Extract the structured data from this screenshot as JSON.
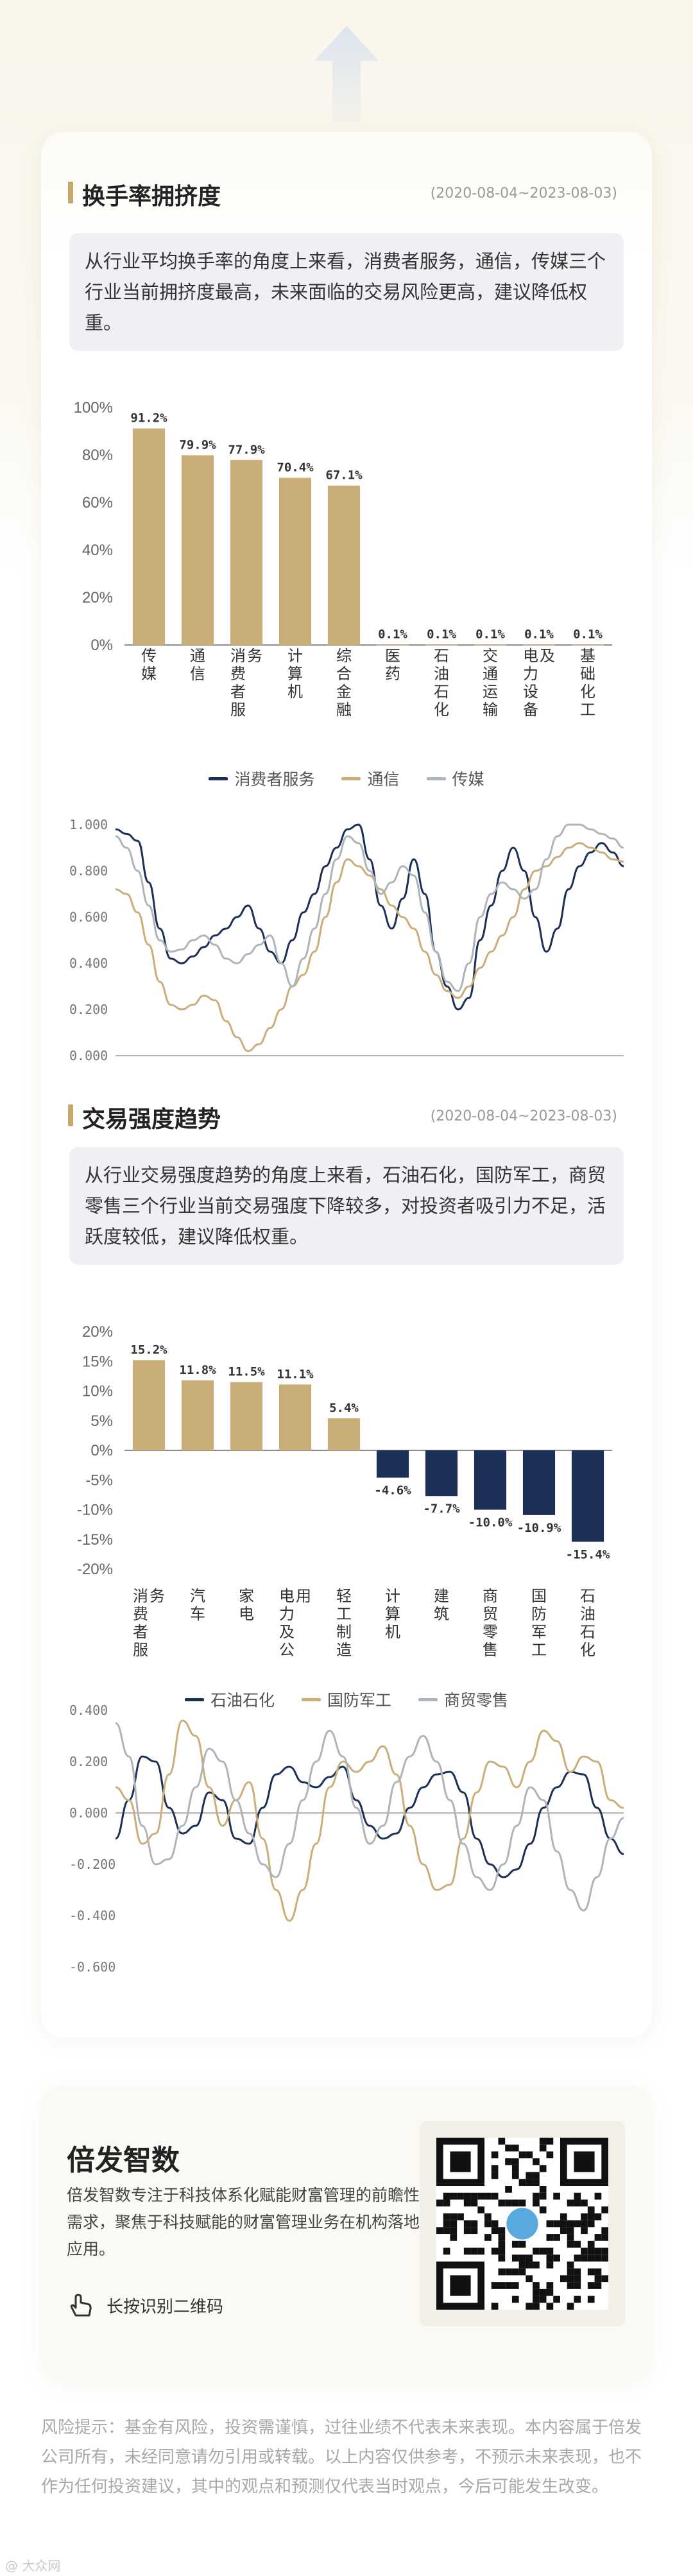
{
  "section1": {
    "title": "换手率拥挤度",
    "date": "(2020-08-04~2023-08-03)",
    "desc": "从行业平均换手率的角度上来看，消费者服务，通信，传媒三个行业当前拥挤度最高，未来面临的交易风险更高，建议降低权重。"
  },
  "section2": {
    "title": "交易强度趋势",
    "date": "(2020-08-04~2023-08-03)",
    "desc": "从行业交易强度趋势的角度上来看，石油石化，国防军工，商贸零售三个行业当前交易强度下降较多，对投资者吸引力不足，活跃度较低，建议降低权重。"
  },
  "promo": {
    "title": "倍发智数",
    "desc": "倍发智数专注于科技体系化赋能财富管理的前瞻性需求，聚焦于科技赋能的财富管理业务在机构落地应用。",
    "scan_label": "长按识别二维码",
    "hand_icon": "hand-pointer-icon",
    "qr_icon": "qr-code-icon"
  },
  "risk": "风险提示：基金有风险，投资需谨慎，过往业绩不代表未来表现。本内容属于倍发公司所有，未经同意请勿引用或转载。以上内容仅供参考，不预示未来表现，也不作为任何投资建议，其中的观点和预测仅代表当时观点，今后可能发生改变。",
  "watermark": "@ 大众网",
  "colors": {
    "gold": "#c9ae79",
    "navy": "#1b2f57",
    "grey": "#aeb4bc",
    "accent": "#c7a86b"
  },
  "chart_data": [
    {
      "type": "bar",
      "categories": [
        "传媒",
        "通信",
        "消费者服务",
        "计算机",
        "综合金融",
        "医药",
        "石油石化",
        "交通运输",
        "电力设备及",
        "基础化工"
      ],
      "values": [
        91.2,
        79.9,
        77.9,
        70.4,
        67.1,
        0.1,
        0.1,
        0.1,
        0.1,
        0.1
      ],
      "value_labels": [
        "91.2%",
        "79.9%",
        "77.9%",
        "70.4%",
        "67.1%",
        "0.1%",
        "0.1%",
        "0.1%",
        "0.1%",
        "0.1%"
      ],
      "yticks": [
        "0%",
        "20%",
        "40%",
        "60%",
        "80%",
        "100%"
      ],
      "ylim": [
        0,
        100
      ]
    },
    {
      "type": "line",
      "series": [
        {
          "name": "消费者服务",
          "values": [
            0.98,
            0.96,
            0.93,
            0.75,
            0.55,
            0.42,
            0.4,
            0.43,
            0.47,
            0.52,
            0.55,
            0.6,
            0.65,
            0.55,
            0.45,
            0.4,
            0.5,
            0.62,
            0.7,
            0.82,
            0.9,
            0.98,
            1.0,
            0.85,
            0.65,
            0.55,
            0.68,
            0.85,
            0.7,
            0.45,
            0.3,
            0.2,
            0.25,
            0.5,
            0.65,
            0.8,
            0.9,
            0.8,
            0.6,
            0.45,
            0.55,
            0.72,
            0.82,
            0.88,
            0.92,
            0.88,
            0.82
          ]
        },
        {
          "name": "通信",
          "values": [
            0.72,
            0.7,
            0.62,
            0.48,
            0.32,
            0.22,
            0.2,
            0.22,
            0.26,
            0.24,
            0.15,
            0.08,
            0.02,
            0.05,
            0.12,
            0.2,
            0.3,
            0.35,
            0.45,
            0.6,
            0.75,
            0.85,
            0.82,
            0.78,
            0.72,
            0.65,
            0.6,
            0.55,
            0.45,
            0.35,
            0.28,
            0.25,
            0.3,
            0.38,
            0.45,
            0.52,
            0.6,
            0.72,
            0.8,
            0.82,
            0.86,
            0.9,
            0.92,
            0.9,
            0.88,
            0.85,
            0.84
          ]
        },
        {
          "name": "传媒",
          "values": [
            0.95,
            0.9,
            0.8,
            0.65,
            0.5,
            0.45,
            0.46,
            0.5,
            0.52,
            0.48,
            0.42,
            0.4,
            0.44,
            0.48,
            0.52,
            0.4,
            0.3,
            0.42,
            0.55,
            0.7,
            0.85,
            0.95,
            0.92,
            0.8,
            0.7,
            0.75,
            0.82,
            0.78,
            0.62,
            0.45,
            0.32,
            0.28,
            0.4,
            0.6,
            0.7,
            0.75,
            0.72,
            0.68,
            0.72,
            0.85,
            0.95,
            1.0,
            1.0,
            0.98,
            0.96,
            0.94,
            0.9
          ]
        }
      ],
      "yticks": [
        "0.000",
        "0.200",
        "0.400",
        "0.600",
        "0.800",
        "1.000"
      ],
      "ylim": [
        0,
        1
      ]
    },
    {
      "type": "bar",
      "categories": [
        "消费者服务",
        "汽车",
        "家电",
        "电力及公用",
        "轻工制造",
        "计算机",
        "建筑",
        "商贸零售",
        "国防军工",
        "石油石化"
      ],
      "values": [
        15.2,
        11.8,
        11.5,
        11.1,
        5.4,
        -4.6,
        -7.7,
        -10.0,
        -10.9,
        -15.4
      ],
      "value_labels": [
        "15.2%",
        "11.8%",
        "11.5%",
        "11.1%",
        "5.4%",
        "-4.6%",
        "-7.7%",
        "-10.0%",
        "-10.9%",
        "-15.4%"
      ],
      "yticks": [
        "-20%",
        "-15%",
        "-10%",
        "-5%",
        "0%",
        "5%",
        "10%",
        "15%",
        "20%"
      ],
      "ylim": [
        -20,
        20
      ]
    },
    {
      "type": "line",
      "series": [
        {
          "name": "石油石化",
          "values": [
            -0.1,
            0.05,
            0.22,
            0.2,
            0.02,
            -0.08,
            -0.05,
            0.08,
            0.05,
            -0.1,
            -0.12,
            0.02,
            0.15,
            0.18,
            0.12,
            0.1,
            0.14,
            0.18,
            0.05,
            -0.05,
            -0.1,
            -0.08,
            0.02,
            0.1,
            0.15,
            0.16,
            0.08,
            -0.1,
            -0.2,
            -0.25,
            -0.22,
            -0.12,
            0.02,
            0.1,
            0.16,
            0.15,
            0.02,
            -0.1,
            -0.16
          ]
        },
        {
          "name": "国防军工",
          "values": [
            0.1,
            0.05,
            -0.12,
            -0.08,
            0.15,
            0.36,
            0.3,
            0.1,
            -0.05,
            0.05,
            0.12,
            -0.1,
            -0.3,
            -0.42,
            -0.3,
            -0.12,
            0.1,
            0.2,
            0.16,
            0.2,
            0.26,
            0.15,
            -0.05,
            -0.2,
            -0.3,
            -0.28,
            -0.1,
            0.08,
            0.2,
            0.18,
            0.1,
            0.2,
            0.32,
            0.28,
            0.16,
            0.22,
            0.2,
            0.05,
            0.02
          ]
        },
        {
          "name": "商贸零售",
          "values": [
            0.35,
            0.22,
            -0.05,
            -0.2,
            -0.18,
            -0.05,
            0.1,
            0.25,
            0.2,
            0.05,
            -0.08,
            -0.2,
            -0.25,
            -0.12,
            0.05,
            0.2,
            0.32,
            0.22,
            0.02,
            -0.12,
            -0.05,
            0.12,
            0.22,
            0.3,
            0.2,
            0.05,
            -0.12,
            -0.25,
            -0.3,
            -0.2,
            -0.05,
            0.1,
            0.05,
            -0.15,
            -0.3,
            -0.38,
            -0.25,
            -0.1,
            -0.02
          ]
        }
      ],
      "yticks": [
        "-0.600",
        "-0.400",
        "-0.200",
        "0.000",
        "0.200",
        "0.400"
      ],
      "ylim": [
        -0.6,
        0.4
      ]
    }
  ]
}
